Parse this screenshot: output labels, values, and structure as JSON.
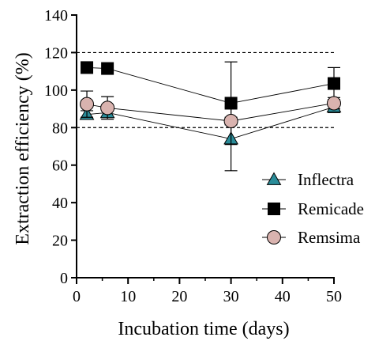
{
  "chart_data": {
    "type": "scatter",
    "title": "",
    "xlabel": "Incubation time (days)",
    "ylabel": "Extraction efficiency (%)",
    "xlim": [
      0,
      50
    ],
    "ylim": [
      0,
      140
    ],
    "x_ticks": [
      "0",
      "10",
      "20",
      "30",
      "40",
      "50"
    ],
    "y_ticks": [
      "0",
      "20",
      "40",
      "60",
      "80",
      "100",
      "120",
      "140"
    ],
    "grid": false,
    "legend_position": "right",
    "reference_lines": [
      120,
      80
    ],
    "series": [
      {
        "name": "Inflectra",
        "marker": "triangle",
        "color": "#2a8c99",
        "x": [
          2,
          6,
          30,
          50
        ],
        "y": [
          87,
          88,
          74,
          91
        ],
        "err": [
          2,
          2,
          17,
          3
        ]
      },
      {
        "name": "Remicade",
        "marker": "square",
        "color": "#000000",
        "x": [
          2,
          6,
          30,
          50
        ],
        "y": [
          112,
          111.5,
          93,
          103.5
        ],
        "err": [
          0,
          0,
          22,
          8.5
        ]
      },
      {
        "name": "Remsima",
        "marker": "circle",
        "color": "#d9b3af",
        "x": [
          2,
          6,
          30,
          50
        ],
        "y": [
          92.5,
          90.5,
          83.5,
          93
        ],
        "err": [
          7,
          6,
          2,
          3
        ]
      }
    ]
  }
}
